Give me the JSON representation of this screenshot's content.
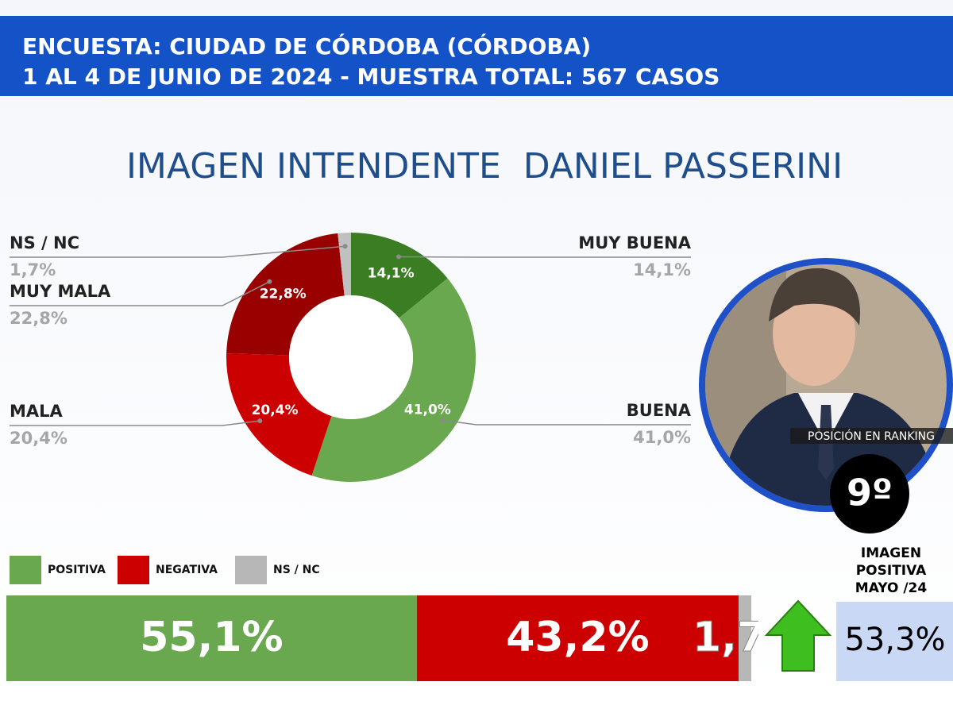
{
  "header": {
    "line1": "ENCUESTA: CIUDAD DE CÓRDOBA (CÓRDOBA)",
    "line2": "1 AL 4 DE JUNIO DE 2024 - MUESTRA TOTAL: 567 CASOS"
  },
  "chart_data": [
    {
      "type": "pie",
      "donut": true,
      "title": "IMAGEN INTENDENTE  DANIEL PASSERINI",
      "categories": [
        "MUY BUENA",
        "BUENA",
        "MALA",
        "MUY MALA",
        "NS / NC"
      ],
      "values": [
        14.1,
        41.0,
        20.4,
        22.8,
        1.7
      ],
      "value_labels": [
        "14,1%",
        "41,0%",
        "20,4%",
        "22,8%",
        "1,7%"
      ],
      "colors": [
        "#3b7d23",
        "#6aa84f",
        "#cc0000",
        "#990000",
        "#c0c0c0"
      ]
    },
    {
      "type": "stacked_bar",
      "categories": [
        "POSITIVA",
        "NEGATIVA",
        "NS / NC"
      ],
      "values": [
        55.1,
        43.2,
        1.7
      ],
      "value_labels": [
        "55,1%",
        "43,2%",
        "1,7%"
      ],
      "colors": [
        "#6aa84f",
        "#cc0000",
        "#b7b7b7"
      ]
    }
  ],
  "ranking": {
    "label": "POSICIÓN EN RANKING",
    "value": "9º"
  },
  "previous": {
    "label": [
      "IMAGEN",
      "POSITIVA",
      "MAYO /24"
    ],
    "value": 53.3,
    "value_label": "53,3%"
  }
}
